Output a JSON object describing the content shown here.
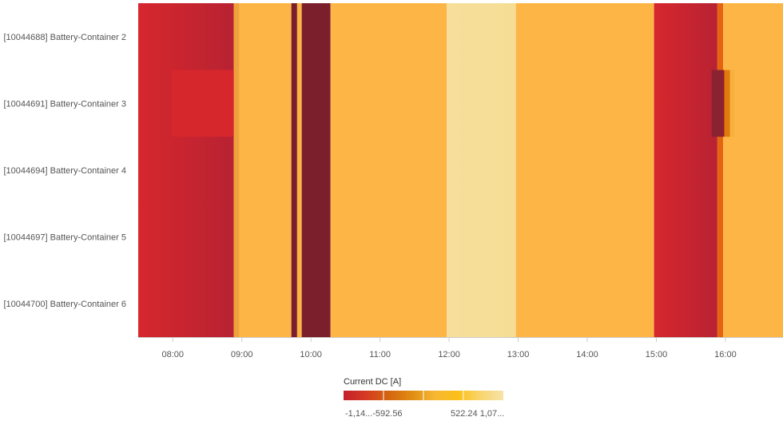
{
  "chart_data": {
    "type": "heatmap",
    "title": "",
    "xlabel": "",
    "ylabel": "",
    "x_range": [
      "07:30",
      "16:50"
    ],
    "x_ticks": [
      "08:00",
      "09:00",
      "10:00",
      "11:00",
      "12:00",
      "13:00",
      "14:00",
      "15:00",
      "16:00"
    ],
    "rows": [
      "[10044688] Battery-Container 2",
      "[10044691] Battery-Container 3",
      "[10044694] Battery-Container 4",
      "[10044697] Battery-Container 5",
      "[10044700] Battery-Container 6"
    ],
    "common_segments": [
      {
        "start": "07:30",
        "end": "08:53",
        "color": "#d6272d",
        "color_end": "#b82232"
      },
      {
        "start": "08:53",
        "end": "08:58",
        "color": "#f0a23a"
      },
      {
        "start": "08:58",
        "end": "09:43",
        "color": "#fdb646"
      },
      {
        "start": "09:43",
        "end": "09:48",
        "color": "#7a1f2b"
      },
      {
        "start": "09:48",
        "end": "09:52",
        "color": "#fdb646"
      },
      {
        "start": "09:52",
        "end": "10:17",
        "color": "#7a1f2b"
      },
      {
        "start": "10:17",
        "end": "11:58",
        "color": "#fdb646"
      },
      {
        "start": "11:58",
        "end": "12:58",
        "color": "#f7df9b",
        "color_end": "#f5dd96"
      },
      {
        "start": "12:58",
        "end": "14:58",
        "color": "#fdb646"
      },
      {
        "start": "14:58",
        "end": "15:53",
        "color": "#d6272d",
        "color_end": "#b82232"
      },
      {
        "start": "15:53",
        "end": "15:58",
        "color": "#e4640f"
      },
      {
        "start": "15:58",
        "end": "16:50",
        "color": "#fdb646"
      }
    ],
    "row_overrides": [
      {
        "row": 1,
        "start": "07:59",
        "end": "08:53",
        "color": "#d6272d"
      },
      {
        "row": 1,
        "start": "15:48",
        "end": "15:59",
        "color": "#8b2230"
      },
      {
        "row": 1,
        "start": "15:59",
        "end": "16:04",
        "color": "#e07a0c"
      },
      {
        "row": 1,
        "start": "16:04",
        "end": "16:08",
        "color": "#f6b23e"
      }
    ],
    "color_scale": {
      "title": "Current DC [A]",
      "stops": [
        "#c4202c",
        "#d63b22",
        "#d46610",
        "#e08c12",
        "#f7b733",
        "#fbc017",
        "#f9d56e",
        "#f7e3a8"
      ],
      "labels": [
        "-1,14...-592.56",
        "522.24 1,07..."
      ]
    }
  }
}
